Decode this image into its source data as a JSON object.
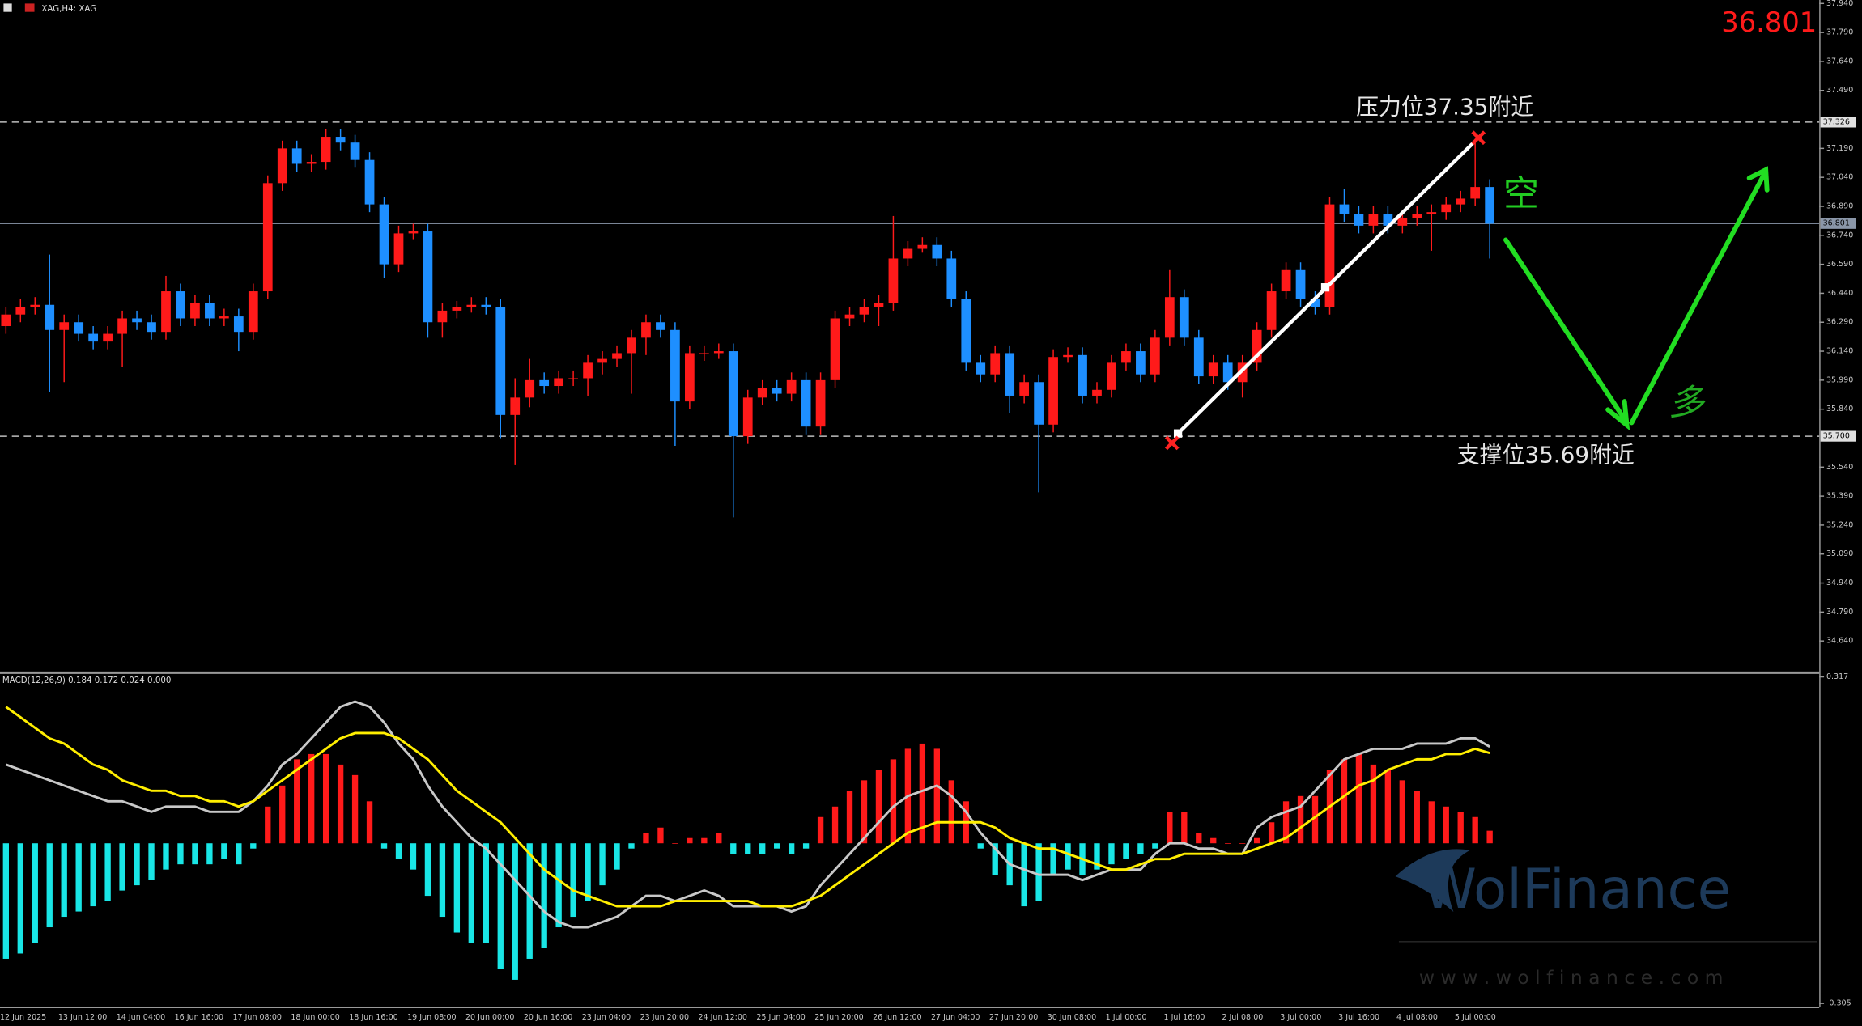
{
  "header": "XAG,H4: XAG",
  "watermark": {
    "brand": "WolFinance",
    "url": "w w w . w o l f i n a n c e . c o m"
  },
  "chart_data": [
    {
      "type": "candlestick",
      "categories": [
        "12 Jun 2025",
        null,
        null,
        null,
        "13 Jun 12:00",
        null,
        null,
        null,
        "14 Jun 04:00",
        null,
        null,
        null,
        "16 Jun 16:00",
        null,
        null,
        null,
        "17 Jun 08:00",
        null,
        null,
        null,
        "18 Jun 00:00",
        null,
        null,
        null,
        "18 Jun 16:00",
        null,
        null,
        null,
        "19 Jun 08:00",
        null,
        null,
        null,
        "20 Jun 00:00",
        null,
        null,
        null,
        "20 Jun 16:00",
        null,
        null,
        null,
        "23 Jun 04:00",
        null,
        null,
        null,
        "23 Jun 20:00",
        null,
        null,
        null,
        "24 Jun 12:00",
        null,
        null,
        null,
        "25 Jun 04:00",
        null,
        null,
        null,
        "25 Jun 20:00",
        null,
        null,
        null,
        "26 Jun 12:00",
        null,
        null,
        null,
        "27 Jun 04:00",
        null,
        null,
        null,
        "27 Jun 20:00",
        null,
        null,
        null,
        "30 Jun 08:00",
        null,
        null,
        null,
        "1 Jul 00:00",
        null,
        null,
        null,
        "1 Jul 16:00",
        null,
        null,
        null,
        "2 Jul 08:00",
        null,
        null,
        null,
        "3 Jul 00:00",
        null,
        null,
        null,
        "3 Jul 16:00",
        null,
        null,
        null,
        "4 Jul 08:00",
        null,
        null,
        null,
        "5 Jul 00:00",
        null,
        null
      ],
      "open": [
        36.27,
        36.33,
        36.37,
        36.38,
        36.25,
        36.29,
        36.23,
        36.19,
        36.23,
        36.31,
        36.29,
        36.24,
        36.45,
        36.31,
        36.39,
        36.31,
        36.32,
        36.24,
        36.45,
        37.01,
        37.19,
        37.11,
        37.12,
        37.25,
        37.22,
        37.13,
        36.9,
        36.59,
        36.75,
        36.76,
        36.29,
        36.35,
        36.37,
        36.38,
        36.37,
        35.81,
        35.9,
        35.99,
        35.96,
        36.0,
        36.0,
        36.08,
        36.1,
        36.13,
        36.21,
        36.29,
        36.25,
        35.88,
        36.13,
        36.13,
        36.14,
        35.7,
        35.9,
        35.95,
        35.92,
        35.99,
        35.75,
        35.99,
        36.31,
        36.33,
        36.37,
        36.39,
        36.62,
        36.67,
        36.69,
        36.62,
        36.41,
        36.08,
        36.02,
        36.13,
        35.91,
        35.98,
        35.76,
        36.11,
        36.12,
        35.91,
        35.94,
        36.08,
        36.14,
        36.02,
        36.21,
        36.42,
        36.21,
        36.01,
        36.08,
        35.98,
        36.08,
        36.25,
        36.45,
        36.56,
        36.41,
        36.37,
        36.9,
        36.85,
        36.79,
        36.85,
        36.79,
        36.83,
        36.85,
        36.86,
        36.9,
        36.93,
        36.99
      ],
      "high": [
        36.37,
        36.41,
        36.42,
        36.64,
        36.33,
        36.33,
        36.27,
        36.27,
        36.35,
        36.35,
        36.33,
        36.53,
        36.49,
        36.43,
        36.43,
        36.36,
        36.36,
        36.49,
        37.05,
        37.23,
        37.23,
        37.16,
        37.29,
        37.29,
        37.26,
        37.17,
        36.94,
        36.79,
        36.8,
        36.8,
        36.39,
        36.4,
        36.42,
        36.42,
        36.41,
        36.0,
        36.1,
        36.03,
        36.04,
        36.04,
        36.12,
        36.14,
        36.17,
        36.25,
        36.33,
        36.33,
        36.29,
        36.17,
        36.17,
        36.18,
        36.18,
        35.94,
        35.99,
        35.99,
        36.03,
        36.03,
        36.03,
        36.35,
        36.37,
        36.41,
        36.43,
        36.84,
        36.71,
        36.73,
        36.73,
        36.66,
        36.45,
        36.12,
        36.17,
        36.17,
        36.02,
        36.02,
        36.15,
        36.16,
        36.16,
        35.98,
        36.12,
        36.18,
        36.18,
        36.25,
        36.56,
        36.46,
        36.25,
        36.12,
        36.12,
        36.12,
        36.29,
        36.49,
        36.6,
        36.6,
        36.45,
        36.94,
        36.98,
        36.89,
        36.89,
        36.89,
        36.87,
        36.89,
        36.9,
        36.94,
        36.97,
        37.24,
        37.03
      ],
      "low": [
        36.23,
        36.29,
        36.33,
        35.93,
        35.98,
        36.19,
        36.15,
        36.15,
        36.06,
        36.25,
        36.2,
        36.2,
        36.27,
        36.27,
        36.27,
        36.27,
        36.14,
        36.2,
        36.41,
        36.97,
        37.07,
        37.07,
        37.08,
        37.18,
        37.09,
        36.86,
        36.52,
        36.55,
        36.72,
        36.21,
        36.21,
        36.31,
        36.34,
        36.33,
        35.69,
        35.55,
        35.85,
        35.92,
        35.92,
        35.96,
        35.91,
        36.02,
        36.06,
        35.92,
        36.12,
        36.21,
        35.65,
        35.84,
        36.09,
        36.1,
        35.28,
        35.66,
        35.86,
        35.88,
        35.88,
        35.71,
        35.71,
        35.95,
        36.27,
        36.29,
        36.27,
        36.35,
        36.58,
        36.65,
        36.58,
        36.37,
        36.04,
        35.98,
        35.98,
        35.82,
        35.87,
        35.41,
        35.72,
        36.08,
        35.87,
        35.87,
        35.9,
        36.04,
        35.98,
        35.98,
        36.17,
        36.17,
        35.97,
        35.97,
        35.94,
        35.9,
        36.04,
        36.21,
        36.41,
        36.37,
        36.33,
        36.33,
        36.81,
        36.75,
        36.75,
        36.75,
        36.75,
        36.79,
        36.66,
        36.82,
        36.86,
        36.89,
        36.62
      ],
      "close": [
        36.33,
        36.37,
        36.38,
        36.25,
        36.29,
        36.23,
        36.19,
        36.23,
        36.31,
        36.29,
        36.24,
        36.45,
        36.31,
        36.39,
        36.31,
        36.32,
        36.24,
        36.45,
        37.01,
        37.19,
        37.11,
        37.12,
        37.25,
        37.22,
        37.13,
        36.9,
        36.59,
        36.75,
        36.76,
        36.29,
        36.35,
        36.37,
        36.38,
        36.37,
        35.81,
        35.9,
        35.99,
        35.96,
        36.0,
        36.0,
        36.08,
        36.1,
        36.13,
        36.21,
        36.29,
        36.25,
        35.88,
        36.13,
        36.13,
        36.14,
        35.7,
        35.9,
        35.95,
        35.92,
        35.99,
        35.75,
        35.99,
        36.31,
        36.33,
        36.37,
        36.39,
        36.62,
        36.67,
        36.69,
        36.62,
        36.41,
        36.08,
        36.02,
        36.13,
        35.91,
        35.98,
        35.76,
        36.11,
        36.12,
        35.91,
        35.94,
        36.08,
        36.14,
        36.02,
        36.21,
        36.42,
        36.21,
        36.01,
        36.08,
        35.98,
        36.08,
        36.25,
        36.45,
        36.56,
        36.41,
        36.37,
        36.9,
        36.85,
        36.79,
        36.85,
        36.79,
        36.83,
        36.85,
        36.86,
        36.9,
        36.93,
        36.99,
        36.8
      ],
      "colors": {
        "up": "#ff1a1a",
        "down": "#1e8fff"
      },
      "ylim": [
        34.485,
        37.958
      ],
      "yticks": [
        {
          "value": 37.94,
          "label": "37.940"
        },
        {
          "value": 37.79,
          "label": "37.790"
        },
        {
          "value": 37.64,
          "label": "37.640"
        },
        {
          "value": 37.49,
          "label": "37.490"
        },
        {
          "value": 37.19,
          "label": "37.190"
        },
        {
          "value": 37.04,
          "label": "37.040"
        },
        {
          "value": 36.89,
          "label": "36.890"
        },
        {
          "value": 36.74,
          "label": "36.740"
        },
        {
          "value": 36.59,
          "label": "36.590"
        },
        {
          "value": 36.44,
          "label": "36.440"
        },
        {
          "value": 36.29,
          "label": "36.290"
        },
        {
          "value": 36.14,
          "label": "36.140"
        },
        {
          "value": 35.99,
          "label": "35.990"
        },
        {
          "value": 35.84,
          "label": "35.840"
        },
        {
          "value": 35.54,
          "label": "35.540"
        },
        {
          "value": 35.39,
          "label": "35.390"
        },
        {
          "value": 35.24,
          "label": "35.240"
        },
        {
          "value": 35.09,
          "label": "35.090"
        },
        {
          "value": 34.94,
          "label": "34.940"
        },
        {
          "value": 34.79,
          "label": "34.790"
        },
        {
          "value": 34.64,
          "label": "34.640"
        }
      ],
      "levels": [
        {
          "value": 37.326,
          "label": "37.326",
          "style": "dashed"
        },
        {
          "value": 36.801,
          "label": "36.801",
          "style": "solid"
        },
        {
          "value": 35.7,
          "label": "35.700",
          "style": "dashed"
        }
      ],
      "annotations": {
        "resistance": "压力位37.35附近",
        "support": "支撑位35.69附近",
        "short": "空",
        "long": "多"
      }
    },
    {
      "type": "macd",
      "title": "MACD(12,26,9) 0.184 0.172 0.024 0.000",
      "ylim": [
        -0.305,
        0.317
      ],
      "yticks": [
        0.317,
        -0.305
      ],
      "series": [
        {
          "kind": "histogram",
          "colors": {
            "up": "#ff1a1a",
            "down": "#19e6e6"
          },
          "values": [
            -0.22,
            -0.21,
            -0.19,
            -0.16,
            -0.14,
            -0.13,
            -0.12,
            -0.11,
            -0.09,
            -0.08,
            -0.07,
            -0.05,
            -0.04,
            -0.04,
            -0.04,
            -0.03,
            -0.04,
            -0.01,
            0.07,
            0.11,
            0.16,
            0.17,
            0.17,
            0.15,
            0.13,
            0.08,
            -0.01,
            -0.03,
            -0.05,
            -0.1,
            -0.14,
            -0.17,
            -0.19,
            -0.19,
            -0.24,
            -0.26,
            -0.22,
            -0.2,
            -0.16,
            -0.14,
            -0.11,
            -0.08,
            -0.05,
            -0.01,
            0.02,
            0.03,
            0.0,
            0.01,
            0.01,
            0.02,
            -0.02,
            -0.02,
            -0.02,
            -0.01,
            -0.02,
            -0.01,
            0.05,
            0.07,
            0.1,
            0.12,
            0.14,
            0.16,
            0.18,
            0.19,
            0.18,
            0.12,
            0.08,
            -0.01,
            -0.06,
            -0.08,
            -0.12,
            -0.11,
            -0.06,
            -0.05,
            -0.06,
            -0.05,
            -0.04,
            -0.03,
            -0.02,
            -0.01,
            0.06,
            0.06,
            0.02,
            0.01,
            0.0,
            0.0,
            0.01,
            0.04,
            0.08,
            0.09,
            0.09,
            0.14,
            0.16,
            0.17,
            0.15,
            0.14,
            0.12,
            0.1,
            0.08,
            0.07,
            0.06,
            0.05,
            0.024
          ]
        },
        {
          "kind": "line",
          "color": "#c8c8c8",
          "values": [
            0.15,
            0.14,
            0.13,
            0.12,
            0.11,
            0.1,
            0.09,
            0.08,
            0.08,
            0.07,
            0.06,
            0.07,
            0.07,
            0.07,
            0.06,
            0.06,
            0.06,
            0.08,
            0.11,
            0.15,
            0.17,
            0.2,
            0.23,
            0.26,
            0.27,
            0.26,
            0.23,
            0.19,
            0.16,
            0.11,
            0.07,
            0.04,
            0.01,
            -0.01,
            -0.04,
            -0.07,
            -0.1,
            -0.13,
            -0.15,
            -0.16,
            -0.16,
            -0.15,
            -0.14,
            -0.12,
            -0.1,
            -0.1,
            -0.11,
            -0.1,
            -0.09,
            -0.1,
            -0.12,
            -0.12,
            -0.12,
            -0.12,
            -0.13,
            -0.12,
            -0.08,
            -0.05,
            -0.02,
            0.01,
            0.04,
            0.07,
            0.09,
            0.1,
            0.11,
            0.09,
            0.06,
            0.02,
            -0.01,
            -0.04,
            -0.05,
            -0.06,
            -0.06,
            -0.06,
            -0.07,
            -0.06,
            -0.05,
            -0.05,
            -0.05,
            -0.02,
            0.0,
            0.0,
            -0.01,
            -0.01,
            -0.02,
            -0.02,
            0.03,
            0.05,
            0.06,
            0.07,
            0.1,
            0.13,
            0.16,
            0.17,
            0.18,
            0.18,
            0.18,
            0.19,
            0.19,
            0.19,
            0.2,
            0.2,
            0.184
          ]
        },
        {
          "kind": "line",
          "color": "#ffee00",
          "values": [
            0.26,
            0.24,
            0.22,
            0.2,
            0.19,
            0.17,
            0.15,
            0.14,
            0.12,
            0.11,
            0.1,
            0.1,
            0.09,
            0.09,
            0.08,
            0.08,
            0.07,
            0.08,
            0.1,
            0.12,
            0.14,
            0.16,
            0.18,
            0.2,
            0.21,
            0.21,
            0.21,
            0.2,
            0.18,
            0.16,
            0.13,
            0.1,
            0.08,
            0.06,
            0.04,
            0.01,
            -0.02,
            -0.05,
            -0.07,
            -0.09,
            -0.1,
            -0.11,
            -0.12,
            -0.12,
            -0.12,
            -0.12,
            -0.11,
            -0.11,
            -0.11,
            -0.11,
            -0.11,
            -0.11,
            -0.12,
            -0.12,
            -0.12,
            -0.11,
            -0.1,
            -0.08,
            -0.06,
            -0.04,
            -0.02,
            0.0,
            0.02,
            0.03,
            0.04,
            0.04,
            0.04,
            0.04,
            0.03,
            0.01,
            0.0,
            -0.01,
            -0.01,
            -0.02,
            -0.03,
            -0.04,
            -0.05,
            -0.05,
            -0.04,
            -0.03,
            -0.03,
            -0.02,
            -0.02,
            -0.02,
            -0.02,
            -0.02,
            -0.01,
            0.0,
            0.01,
            0.03,
            0.05,
            0.07,
            0.09,
            0.11,
            0.12,
            0.14,
            0.15,
            0.16,
            0.16,
            0.17,
            0.17,
            0.18,
            0.172
          ]
        }
      ]
    }
  ]
}
